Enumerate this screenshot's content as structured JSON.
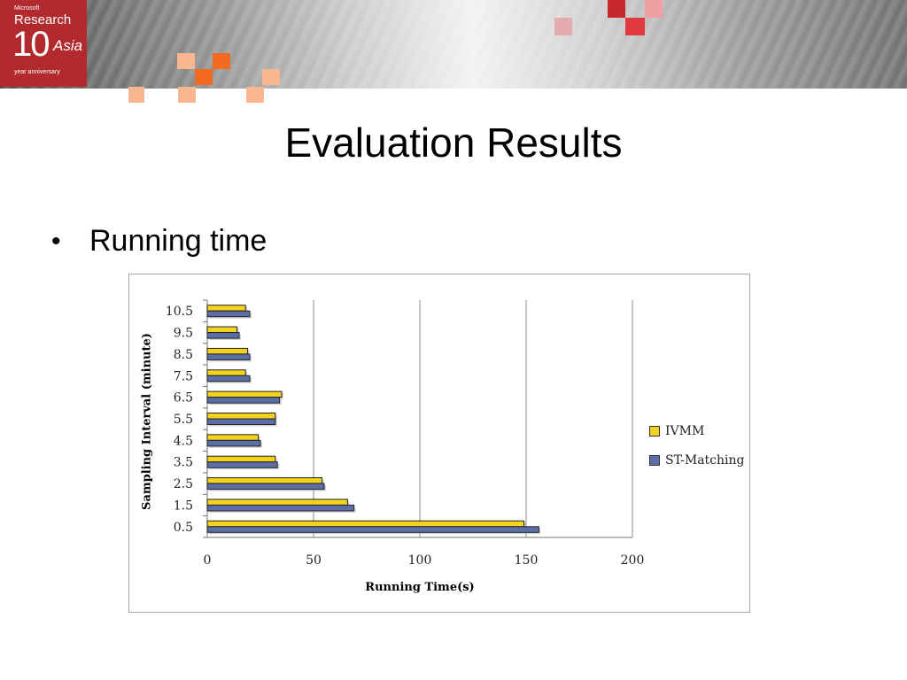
{
  "header": {
    "logo_small": "Microsoft",
    "logo_research": "Research",
    "logo_number": "10",
    "logo_asia": "Asia",
    "logo_tagline": "year anniversary",
    "accent_colors": [
      "#b22a2e",
      "#f26b21",
      "#f9b78f",
      "#e03a3e"
    ]
  },
  "slide": {
    "title": "Evaluation Results",
    "bullet": "Running time"
  },
  "chart_data": {
    "type": "bar",
    "orientation": "horizontal",
    "categories": [
      "10.5",
      "9.5",
      "8.5",
      "7.5",
      "6.5",
      "5.5",
      "4.5",
      "3.5",
      "2.5",
      "1.5",
      "0.5"
    ],
    "series": [
      {
        "name": "IVMM",
        "color": "#f5d21e",
        "values": [
          18,
          14,
          19,
          18,
          35,
          32,
          24,
          32,
          54,
          66,
          149
        ]
      },
      {
        "name": "ST-Matching",
        "color": "#5b6ea8",
        "values": [
          20,
          15,
          20,
          20,
          34,
          32,
          25,
          33,
          55,
          69,
          156
        ]
      }
    ],
    "xlabel": "Running Time(s)",
    "ylabel": "Sampling Interval (minute)",
    "xlim": [
      0,
      200
    ],
    "xticks": [
      "0",
      "50",
      "100",
      "150",
      "200"
    ],
    "grid": "vertical",
    "legend": "right"
  }
}
